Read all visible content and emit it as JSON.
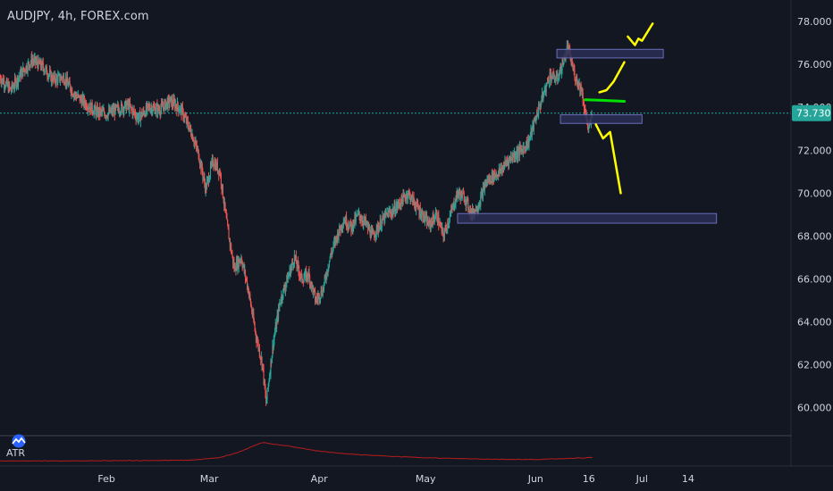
{
  "title": "AUDJPY, 4h, FOREX.com",
  "indicator_label": "ATR",
  "colors": {
    "background": "#131722",
    "up": "#26a69a",
    "down": "#ef5350",
    "text": "#d1d4dc",
    "price_line": "#26a69a",
    "zone_fill": "#2a2e55",
    "zone_border": "#6a6fb8",
    "drawing_yellow": "#ffff00",
    "drawing_green": "#00e000",
    "atr_line": "#b71c1c"
  },
  "chart_data": {
    "type": "candlestick",
    "symbol": "AUDJPY",
    "timeframe": "4h",
    "source": "FOREX.com",
    "current_price": 73.73,
    "current_price_label": "73.730",
    "y_ticks": [
      "60.000",
      "62.000",
      "64.000",
      "66.000",
      "68.000",
      "70.000",
      "72.000",
      "74.000",
      "76.000",
      "78.000"
    ],
    "ylim": [
      58.7,
      79.0
    ],
    "x_ticks": [
      {
        "label": "Feb",
        "day": 31
      },
      {
        "label": "Mar",
        "day": 60
      },
      {
        "label": "Apr",
        "day": 91
      },
      {
        "label": "May",
        "day": 121
      },
      {
        "label": "Jun",
        "day": 152
      },
      {
        "label": "16",
        "day": 167
      },
      {
        "label": "Jul",
        "day": 182
      },
      {
        "label": "14",
        "day": 195
      }
    ],
    "xlim_day": [
      1,
      224
    ],
    "last_bar_day": 168,
    "close_path": [
      {
        "day": 1,
        "price": 75.4
      },
      {
        "day": 4,
        "price": 74.8
      },
      {
        "day": 7,
        "price": 75.6
      },
      {
        "day": 10,
        "price": 76.2
      },
      {
        "day": 13,
        "price": 75.9
      },
      {
        "day": 16,
        "price": 75.3
      },
      {
        "day": 19,
        "price": 75.4
      },
      {
        "day": 22,
        "price": 74.6
      },
      {
        "day": 25,
        "price": 74.2
      },
      {
        "day": 28,
        "price": 73.8
      },
      {
        "day": 31,
        "price": 73.7
      },
      {
        "day": 34,
        "price": 73.9
      },
      {
        "day": 37,
        "price": 74.1
      },
      {
        "day": 40,
        "price": 73.5
      },
      {
        "day": 43,
        "price": 74.0
      },
      {
        "day": 46,
        "price": 73.9
      },
      {
        "day": 49,
        "price": 74.3
      },
      {
        "day": 52,
        "price": 73.9
      },
      {
        "day": 55,
        "price": 72.8
      },
      {
        "day": 57,
        "price": 71.8
      },
      {
        "day": 59,
        "price": 70.2
      },
      {
        "day": 61,
        "price": 71.5
      },
      {
        "day": 63,
        "price": 71.0
      },
      {
        "day": 65,
        "price": 68.5
      },
      {
        "day": 67,
        "price": 66.5
      },
      {
        "day": 69,
        "price": 67.0
      },
      {
        "day": 71,
        "price": 65.5
      },
      {
        "day": 73,
        "price": 63.5
      },
      {
        "day": 75,
        "price": 62.0
      },
      {
        "day": 76,
        "price": 60.2
      },
      {
        "day": 78,
        "price": 63.0
      },
      {
        "day": 80,
        "price": 65.0
      },
      {
        "day": 82,
        "price": 66.0
      },
      {
        "day": 84,
        "price": 67.0
      },
      {
        "day": 86,
        "price": 66.0
      },
      {
        "day": 88,
        "price": 66.2
      },
      {
        "day": 90,
        "price": 65.0
      },
      {
        "day": 92,
        "price": 65.5
      },
      {
        "day": 94,
        "price": 67.0
      },
      {
        "day": 96,
        "price": 68.0
      },
      {
        "day": 98,
        "price": 68.8
      },
      {
        "day": 100,
        "price": 68.4
      },
      {
        "day": 102,
        "price": 69.0
      },
      {
        "day": 104,
        "price": 68.6
      },
      {
        "day": 106,
        "price": 68.0
      },
      {
        "day": 108,
        "price": 68.5
      },
      {
        "day": 110,
        "price": 69.0
      },
      {
        "day": 112,
        "price": 69.2
      },
      {
        "day": 114,
        "price": 69.6
      },
      {
        "day": 116,
        "price": 70.0
      },
      {
        "day": 118,
        "price": 69.5
      },
      {
        "day": 120,
        "price": 69.0
      },
      {
        "day": 122,
        "price": 68.5
      },
      {
        "day": 124,
        "price": 69.0
      },
      {
        "day": 126,
        "price": 68.0
      },
      {
        "day": 128,
        "price": 69.0
      },
      {
        "day": 130,
        "price": 70.0
      },
      {
        "day": 132,
        "price": 69.8
      },
      {
        "day": 134,
        "price": 69.0
      },
      {
        "day": 136,
        "price": 69.5
      },
      {
        "day": 138,
        "price": 70.5
      },
      {
        "day": 140,
        "price": 70.8
      },
      {
        "day": 142,
        "price": 71.0
      },
      {
        "day": 144,
        "price": 71.5
      },
      {
        "day": 146,
        "price": 71.8
      },
      {
        "day": 148,
        "price": 72.0
      },
      {
        "day": 150,
        "price": 72.4
      },
      {
        "day": 152,
        "price": 73.5
      },
      {
        "day": 154,
        "price": 74.5
      },
      {
        "day": 156,
        "price": 75.5
      },
      {
        "day": 158,
        "price": 75.3
      },
      {
        "day": 160,
        "price": 76.2
      },
      {
        "day": 161,
        "price": 76.8
      },
      {
        "day": 163,
        "price": 75.5
      },
      {
        "day": 165,
        "price": 74.8
      },
      {
        "day": 166,
        "price": 73.7
      },
      {
        "day": 167,
        "price": 72.9
      },
      {
        "day": 168,
        "price": 73.73
      }
    ],
    "zones": [
      {
        "from_day": 158,
        "to_day": 188,
        "low": 76.3,
        "high": 76.7
      },
      {
        "from_day": 159,
        "to_day": 182,
        "low": 73.25,
        "high": 73.65
      },
      {
        "from_day": 130,
        "to_day": 203,
        "low": 68.6,
        "high": 69.05
      }
    ],
    "drawings": [
      {
        "color": "yellow",
        "path": [
          {
            "day": 178,
            "price": 77.3
          },
          {
            "day": 180,
            "price": 76.9
          },
          {
            "day": 181,
            "price": 77.2
          },
          {
            "day": 182,
            "price": 77.1
          },
          {
            "day": 185,
            "price": 77.9
          }
        ]
      },
      {
        "color": "yellow",
        "path": [
          {
            "day": 170,
            "price": 74.7
          },
          {
            "day": 172,
            "price": 74.8
          },
          {
            "day": 174,
            "price": 75.2
          },
          {
            "day": 177,
            "price": 76.1
          }
        ]
      },
      {
        "color": "green",
        "path": [
          {
            "day": 166,
            "price": 74.35
          },
          {
            "day": 170,
            "price": 74.33
          },
          {
            "day": 177,
            "price": 74.28
          }
        ]
      },
      {
        "color": "yellow",
        "path": [
          {
            "day": 169,
            "price": 73.2
          },
          {
            "day": 171,
            "price": 72.55
          },
          {
            "day": 173,
            "price": 72.85
          },
          {
            "day": 176,
            "price": 70.0
          }
        ]
      }
    ],
    "atr_indicator": {
      "name": "ATR",
      "path": [
        {
          "day": 1,
          "value": 0.2
        },
        {
          "day": 20,
          "value": 0.2
        },
        {
          "day": 40,
          "value": 0.21
        },
        {
          "day": 55,
          "value": 0.22
        },
        {
          "day": 63,
          "value": 0.3
        },
        {
          "day": 68,
          "value": 0.45
        },
        {
          "day": 72,
          "value": 0.62
        },
        {
          "day": 75,
          "value": 0.75
        },
        {
          "day": 78,
          "value": 0.7
        },
        {
          "day": 82,
          "value": 0.65
        },
        {
          "day": 90,
          "value": 0.5
        },
        {
          "day": 100,
          "value": 0.4
        },
        {
          "day": 112,
          "value": 0.33
        },
        {
          "day": 125,
          "value": 0.28
        },
        {
          "day": 140,
          "value": 0.25
        },
        {
          "day": 152,
          "value": 0.24
        },
        {
          "day": 160,
          "value": 0.27
        },
        {
          "day": 168,
          "value": 0.3
        }
      ],
      "ylim": [
        0.1,
        0.9
      ]
    },
    "grid": false,
    "legend": "none"
  }
}
